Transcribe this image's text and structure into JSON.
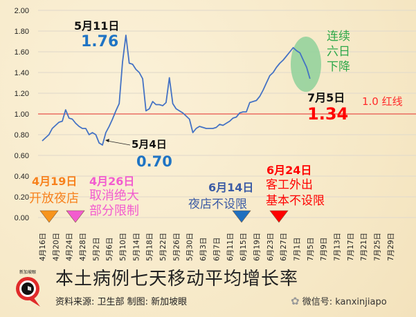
{
  "chart_data": {
    "type": "line",
    "title": "本土病例七天移动平均增长率",
    "xlabel": "",
    "ylabel": "",
    "ylim": [
      0,
      2.0
    ],
    "yticks": [
      "0.00",
      "0.20",
      "0.40",
      "0.60",
      "0.80",
      "1.00",
      "1.20",
      "1.40",
      "1.60",
      "1.80",
      "2.00"
    ],
    "xticks": [
      "4月16日",
      "4月20日",
      "4月24日",
      "4月28日",
      "5月2日",
      "5月6日",
      "5月10日",
      "5月14日",
      "5月18日",
      "5月22日",
      "5月26日",
      "5月30日",
      "6月3日",
      "6月7日",
      "6月11日",
      "6月15日",
      "6月19日",
      "6月23日",
      "6月27日",
      "7月1日",
      "7月5日",
      "7月9日",
      "7月13日",
      "7月17日",
      "7月21日",
      "7月25日",
      "7月29日"
    ],
    "grid": true,
    "reference_line": {
      "value": 1.0,
      "label": "1.0 红线",
      "color": "#e8302c"
    },
    "series": [
      {
        "name": "七天移动平均增长率",
        "color": "#4472c4",
        "points": [
          [
            "4月16日",
            0.74
          ],
          [
            "4月17日",
            0.77
          ],
          [
            "4月18日",
            0.8
          ],
          [
            "4月19日",
            0.86
          ],
          [
            "4月20日",
            0.89
          ],
          [
            "4月21日",
            0.92
          ],
          [
            "4月22日",
            0.93
          ],
          [
            "4月23日",
            1.04
          ],
          [
            "4月24日",
            0.96
          ],
          [
            "4月25日",
            0.95
          ],
          [
            "4月26日",
            0.91
          ],
          [
            "4月27日",
            0.88
          ],
          [
            "4月28日",
            0.86
          ],
          [
            "4月29日",
            0.86
          ],
          [
            "4月30日",
            0.8
          ],
          [
            "5月1日",
            0.82
          ],
          [
            "5月2日",
            0.8
          ],
          [
            "5月3日",
            0.72
          ],
          [
            "5月4日",
            0.7
          ],
          [
            "5月5日",
            0.82
          ],
          [
            "5月6日",
            0.88
          ],
          [
            "5月7日",
            0.95
          ],
          [
            "5月8日",
            1.03
          ],
          [
            "5月9日",
            1.1
          ],
          [
            "5月10日",
            1.5
          ],
          [
            "5月11日",
            1.76
          ],
          [
            "5月12日",
            1.49
          ],
          [
            "5月13日",
            1.48
          ],
          [
            "5月14日",
            1.43
          ],
          [
            "5月15日",
            1.4
          ],
          [
            "5月16日",
            1.34
          ],
          [
            "5月17日",
            1.03
          ],
          [
            "5月18日",
            1.05
          ],
          [
            "5月19日",
            1.12
          ],
          [
            "5月20日",
            1.09
          ],
          [
            "5月21日",
            1.09
          ],
          [
            "5月22日",
            1.08
          ],
          [
            "5月23日",
            1.11
          ],
          [
            "5月24日",
            1.35
          ],
          [
            "5月25日",
            1.1
          ],
          [
            "5月26日",
            1.05
          ],
          [
            "5月27日",
            1.03
          ],
          [
            "5月28日",
            1.01
          ],
          [
            "5月29日",
            0.98
          ],
          [
            "5月30日",
            0.95
          ],
          [
            "5月31日",
            0.82
          ],
          [
            "6月1日",
            0.86
          ],
          [
            "6月2日",
            0.88
          ],
          [
            "6月3日",
            0.87
          ],
          [
            "6月4日",
            0.86
          ],
          [
            "6月5日",
            0.86
          ],
          [
            "6月6日",
            0.86
          ],
          [
            "6月7日",
            0.87
          ],
          [
            "6月8日",
            0.9
          ],
          [
            "6月9日",
            0.89
          ],
          [
            "6月10日",
            0.91
          ],
          [
            "6月11日",
            0.93
          ],
          [
            "6月12日",
            0.96
          ],
          [
            "6月13日",
            0.97
          ],
          [
            "6月14日",
            1.01
          ],
          [
            "6月15日",
            1.02
          ],
          [
            "6月16日",
            1.02
          ],
          [
            "6月17日",
            1.11
          ],
          [
            "6月18日",
            1.12
          ],
          [
            "6月19日",
            1.13
          ],
          [
            "6月20日",
            1.17
          ],
          [
            "6月21日",
            1.23
          ],
          [
            "6月22日",
            1.3
          ],
          [
            "6月23日",
            1.37
          ],
          [
            "6月24日",
            1.4
          ],
          [
            "6月25日",
            1.45
          ],
          [
            "6月26日",
            1.49
          ],
          [
            "6月27日",
            1.52
          ],
          [
            "6月28日",
            1.56
          ],
          [
            "6月29日",
            1.6
          ],
          [
            "6月30日",
            1.64
          ],
          [
            "7月1日",
            1.61
          ],
          [
            "7月2日",
            1.59
          ],
          [
            "7月3日",
            1.52
          ],
          [
            "7月4日",
            1.45
          ],
          [
            "7月5日",
            1.34
          ]
        ]
      }
    ],
    "annotations": [
      {
        "date": "5月11日",
        "value": "1.76"
      },
      {
        "date": "5月4日",
        "value": "0.70"
      },
      {
        "date": "7月5日",
        "value": "1.34"
      },
      {
        "text": "连续 六日 下降"
      }
    ],
    "events": [
      {
        "date": "4月19日",
        "text": "开放夜店",
        "color": "#f7941d"
      },
      {
        "date": "4月26日",
        "text": "取消绝大部分限制",
        "color": "#f25ccf"
      },
      {
        "date": "6月14日",
        "text": "夜店不设限",
        "color": "#1f6fc0"
      },
      {
        "date": "6月24日",
        "text": "客工外出基本不设限",
        "color": "#ff0000"
      }
    ]
  },
  "labels": {
    "peak_date": "5月11日",
    "peak_value": "1.76",
    "low_date": "5月4日",
    "low_value": "0.70",
    "latest_date": "7月5日",
    "latest_value": "1.34",
    "decline_line1": "连续",
    "decline_line2": "六日",
    "decline_line3": "下降",
    "redline": "1.0 红线",
    "event1_date": "4月19日",
    "event1_text": "开放夜店",
    "event2_date": "4月26日",
    "event2_line1": "取消绝大",
    "event2_line2": "部分限制",
    "event3_date": "6月14日",
    "event3_text": "夜店不设限",
    "event4_date": "6月24日",
    "event4_line1": "客工外出",
    "event4_line2": "基本不设限"
  },
  "footer": {
    "title": "本土病例七天移动平均增长率",
    "source": "资料来源:  卫生部     制图:  新加坡眼",
    "wechat": "微信号: kanxinjiapo",
    "logo_text": "新加坡眼"
  },
  "colors": {
    "line": "#4472c4",
    "redline": "#e8302c",
    "peak_value": "#1f74c4",
    "latest_value": "#ff0000",
    "decline_text": "#2ea84a",
    "ellipse": "#8fd19a"
  }
}
